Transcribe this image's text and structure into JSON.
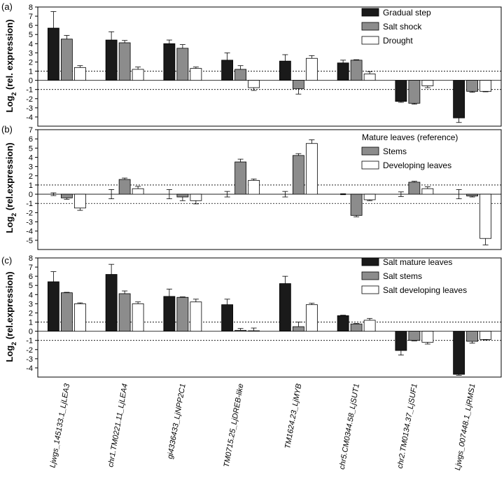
{
  "categories": [
    "Ljwgs_145133.1_LjLEA3",
    "chr1.TM0221.11_LjLEA4",
    "gi4336433_LjNPP2C1",
    "TM0715.25_LjDREB-like",
    "TM1624.23_LjMYB",
    "chr5.CM0344.58_LjSUT1",
    "chr2.TM0134.37_LjSUF1",
    "Ljwgs_007448.1_LjRMS1"
  ],
  "colors": {
    "dark": "#1a1a1a",
    "gray": "#8c8c8c",
    "white": "#ffffff",
    "stroke": "#000000"
  },
  "chart_data": [
    {
      "type": "bar",
      "panel_label": "(a)",
      "ylabel_main": "Log",
      "ylabel_sub": "2",
      "ylabel_rest": " (rel. expression)",
      "ylim": [
        -5,
        8
      ],
      "yticks": [
        "8",
        "7",
        "6",
        "5",
        "4",
        "3",
        "2",
        "1",
        "0",
        "-1",
        "-2",
        "-3",
        "-4"
      ],
      "reference_lines": [
        1,
        -1
      ],
      "series": [
        {
          "name": "Gradual step",
          "values": [
            5.7,
            4.4,
            4.0,
            2.2,
            2.1,
            1.9,
            -2.3,
            -4.1
          ],
          "errors": [
            1.8,
            0.9,
            0.4,
            0.8,
            0.7,
            0.3,
            0.1,
            0.5
          ]
        },
        {
          "name": "Salt shock",
          "values": [
            4.5,
            4.1,
            3.5,
            1.2,
            -0.9,
            2.2,
            -2.5,
            -1.2
          ],
          "errors": [
            0.4,
            0.25,
            0.4,
            0.4,
            0.6,
            0.05,
            0.1,
            0.1
          ]
        },
        {
          "name": "Drought",
          "values": [
            1.4,
            1.2,
            1.3,
            -0.8,
            2.4,
            0.7,
            -0.6,
            -1.2
          ],
          "errors": [
            0.2,
            0.25,
            0.15,
            0.3,
            0.3,
            0.25,
            0.2,
            0.05
          ]
        }
      ]
    },
    {
      "type": "bar",
      "panel_label": "(b)",
      "ylabel_main": "Log",
      "ylabel_sub": "2",
      "ylabel_rest": " (rel.expression)",
      "ylim": [
        -6,
        7
      ],
      "yticks": [
        "7",
        "6",
        "5",
        "4",
        "3",
        "2",
        "1",
        "0",
        "-1",
        "-2",
        "-3",
        "-4",
        "-5"
      ],
      "reference_lines": [
        1,
        -1
      ],
      "series": [
        {
          "name": "Mature leaves (reference)",
          "values": [
            0,
            0,
            0,
            0,
            0,
            0,
            0,
            0
          ],
          "errors": [
            0.15,
            0.5,
            0.5,
            0.3,
            0.3,
            0.05,
            0.25,
            0.5
          ]
        },
        {
          "name": "Stems",
          "values": [
            -0.4,
            1.6,
            -0.3,
            3.5,
            4.2,
            -2.3,
            1.3,
            -0.2
          ],
          "errors": [
            0.15,
            0.15,
            0.4,
            0.3,
            0.2,
            0.15,
            0.1,
            0.1
          ]
        },
        {
          "name": "Developing leaves",
          "values": [
            -1.5,
            0.6,
            -0.7,
            1.5,
            5.5,
            -0.6,
            0.6,
            -4.8
          ],
          "errors": [
            0.25,
            0.25,
            0.35,
            0.15,
            0.4,
            0.1,
            0.2,
            0.7
          ]
        }
      ]
    },
    {
      "type": "bar",
      "panel_label": "(c)",
      "ylabel_main": "Log",
      "ylabel_sub": "2",
      "ylabel_rest": " (rel.expression)",
      "ylim": [
        -5,
        8
      ],
      "yticks": [
        "8",
        "7",
        "6",
        "5",
        "4",
        "3",
        "2",
        "1",
        "0",
        "-1",
        "-2",
        "-3",
        "-4"
      ],
      "reference_lines": [
        1,
        -1
      ],
      "series": [
        {
          "name": "Salt mature leaves",
          "values": [
            5.4,
            6.2,
            3.8,
            2.9,
            5.2,
            1.7,
            -2.1,
            -4.7
          ],
          "errors": [
            1.1,
            1.1,
            0.8,
            0.6,
            0.8,
            0.05,
            0.5,
            0.1
          ]
        },
        {
          "name": "Salt stems",
          "values": [
            4.2,
            4.1,
            3.7,
            0.1,
            0.5,
            0.8,
            -1.0,
            -1.1
          ],
          "errors": [
            0.05,
            0.3,
            0.05,
            0.2,
            0.5,
            0.05,
            0.05,
            0.2
          ]
        },
        {
          "name": "Salt developing leaves",
          "values": [
            3.0,
            3.0,
            3.2,
            0.05,
            2.9,
            1.2,
            -1.2,
            -0.9
          ],
          "errors": [
            0.1,
            0.2,
            0.3,
            0.3,
            0.15,
            0.2,
            0.2,
            0.05
          ]
        }
      ]
    }
  ]
}
